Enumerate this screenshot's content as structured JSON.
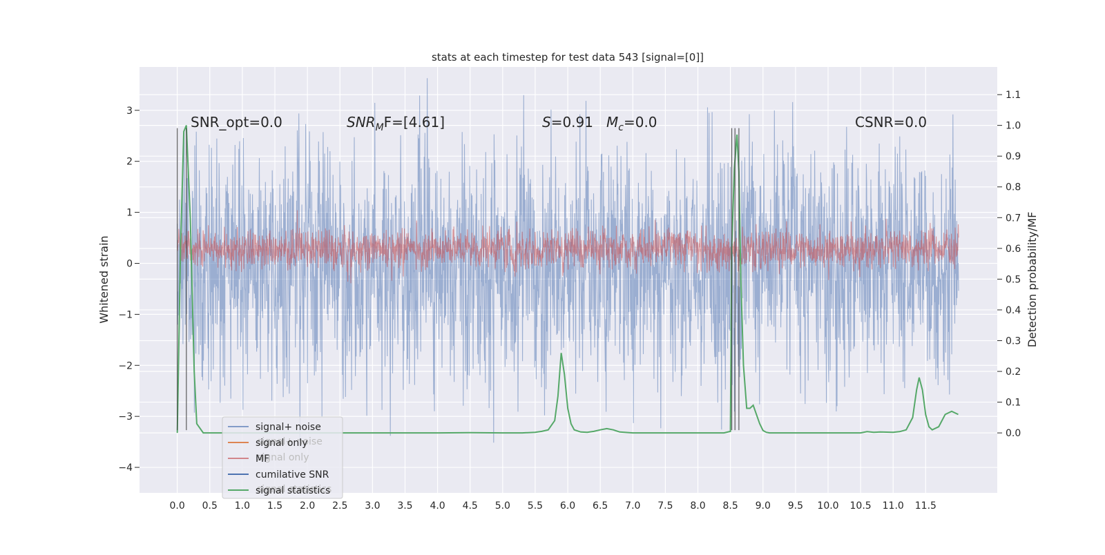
{
  "chart_data": {
    "type": "line",
    "title": "stats at each timestep for test data 543 [signal=[0]]",
    "xlabel": "",
    "ylabel_left": "Whitened strain",
    "ylabel_right": "Detection probability/MF",
    "xlim": [
      -0.58,
      12.6
    ],
    "ylim_left": [
      -4.5,
      3.85
    ],
    "ylim_right": [
      -0.195,
      1.19
    ],
    "x_ticks": [
      "0.0",
      "0.5",
      "1.0",
      "1.5",
      "2.0",
      "2.5",
      "3.0",
      "3.5",
      "4.0",
      "4.5",
      "5.0",
      "5.5",
      "6.0",
      "6.5",
      "7.0",
      "7.5",
      "8.0",
      "8.5",
      "9.0",
      "9.5",
      "10.0",
      "10.5",
      "11.0",
      "11.5"
    ],
    "y_ticks_left": [
      "−4",
      "−3",
      "−2",
      "−1",
      "0",
      "1",
      "2",
      "3"
    ],
    "y_ticks_right": [
      "0.0",
      "0.1",
      "0.2",
      "0.3",
      "0.4",
      "0.5",
      "0.6",
      "0.7",
      "0.8",
      "0.9",
      "1.0",
      "1.1"
    ],
    "grid": true,
    "legend_position": "lower-left",
    "annotations": {
      "snr_opt": "SNR_opt=0.0",
      "snr_mf_main": "SNR",
      "snr_mf_sub": "M",
      "snr_mf_rest": "F=[4.61]",
      "s_main": "S",
      "s_rest": "=0.91",
      "mc_main": "M",
      "mc_sub": "c",
      "mc_rest": "=0.0",
      "csnr": "CSNR=0.0"
    },
    "ghost_legend": [
      "signal+ noise",
      "signal only",
      "signal statistics"
    ],
    "series": [
      {
        "name": "signal+ noise",
        "color": "#4c72b0",
        "kind": "noise",
        "x_range": [
          0.0,
          12.0
        ],
        "center": 0.0,
        "spread": 1.5,
        "axis": "left"
      },
      {
        "name": "signal only",
        "color": "#dd8452",
        "kind": "flat",
        "axis": "left",
        "values": []
      },
      {
        "name": "MF",
        "color": "#c44e52",
        "kind": "noise",
        "x_range": [
          0.0,
          12.0
        ],
        "center": 0.28,
        "spread": 0.25,
        "axis": "left"
      },
      {
        "name": "cumilative SNR",
        "color": "#4c72b0",
        "kind": "flat",
        "axis": "left",
        "values": []
      },
      {
        "name": "signal statistics",
        "color": "#55a868",
        "kind": "line",
        "axis": "right",
        "x": [
          0.0,
          0.05,
          0.1,
          0.14,
          0.2,
          0.26,
          0.3,
          0.4,
          0.6,
          0.8,
          1.0,
          1.5,
          2.0,
          2.5,
          3.0,
          3.5,
          4.0,
          4.5,
          5.0,
          5.3,
          5.5,
          5.6,
          5.7,
          5.8,
          5.85,
          5.9,
          5.95,
          6.0,
          6.05,
          6.1,
          6.2,
          6.3,
          6.4,
          6.5,
          6.6,
          6.7,
          6.8,
          7.0,
          7.5,
          8.0,
          8.4,
          8.5,
          8.52,
          8.56,
          8.6,
          8.63,
          8.66,
          8.7,
          8.75,
          8.8,
          8.85,
          8.9,
          8.95,
          9.0,
          9.05,
          9.1,
          9.2,
          9.5,
          10.0,
          10.3,
          10.5,
          10.6,
          10.7,
          10.8,
          11.0,
          11.1,
          11.2,
          11.3,
          11.36,
          11.4,
          11.45,
          11.5,
          11.55,
          11.6,
          11.7,
          11.8,
          11.9,
          12.0
        ],
        "values": [
          0.0,
          0.6,
          0.98,
          1.0,
          0.7,
          0.2,
          0.03,
          0.0,
          0.0,
          0.0,
          0.0,
          0.0,
          0.0,
          0.0,
          0.0,
          0.0,
          0.0,
          0.001,
          0.0,
          0.0,
          0.002,
          0.005,
          0.01,
          0.04,
          0.12,
          0.26,
          0.19,
          0.08,
          0.03,
          0.01,
          0.003,
          0.002,
          0.005,
          0.01,
          0.014,
          0.01,
          0.003,
          0.0,
          0.0,
          0.0,
          0.0,
          0.005,
          0.6,
          0.86,
          0.97,
          0.85,
          0.5,
          0.22,
          0.08,
          0.08,
          0.09,
          0.06,
          0.03,
          0.008,
          0.002,
          0.0,
          0.0,
          0.0,
          0.0,
          0.0,
          0.0,
          0.004,
          0.002,
          0.003,
          0.002,
          0.004,
          0.01,
          0.05,
          0.14,
          0.18,
          0.14,
          0.06,
          0.02,
          0.01,
          0.02,
          0.06,
          0.07,
          0.06
        ]
      }
    ]
  }
}
